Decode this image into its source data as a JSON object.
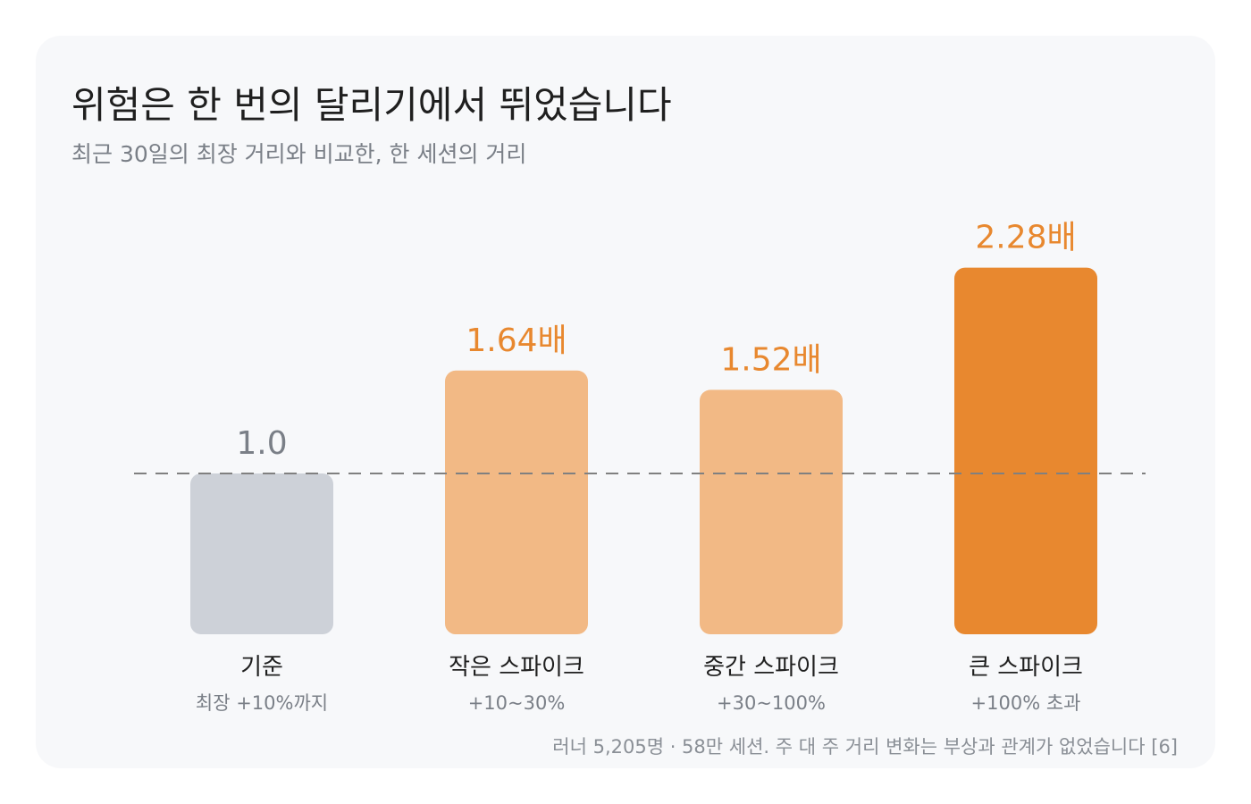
{
  "title": "위험은 한 번의 달리기에서 뛰었습니다",
  "subtitle": "최근 30일의 최장 거리와 비교한, 한 세션의 거리",
  "footnote": "러너 5,205명 · 58만 세션. 주 대 주 거리 변화는 부상과 관계가 없었습니다 [6]",
  "colors": {
    "baseline_bar": "#cdd1d8",
    "light_bar": "#f2b985",
    "strong_bar": "#e8882f",
    "baseline_value": "#7a7f87",
    "accent_value": "#e8882f",
    "reference_line": "#808080"
  },
  "chart_data": {
    "type": "bar",
    "categories": [
      "기준",
      "작은 스파이크",
      "중간 스파이크",
      "큰 스파이크"
    ],
    "category_sublabels": [
      "최장 +10%까지",
      "+10~30%",
      "+30~100%",
      "+100% 초과"
    ],
    "values": [
      1.0,
      1.64,
      1.52,
      2.28
    ],
    "value_labels": [
      "1.0",
      "1.64배",
      "1.52배",
      "2.28배"
    ],
    "reference_line": 1.0,
    "grid": false,
    "legend": "none"
  }
}
